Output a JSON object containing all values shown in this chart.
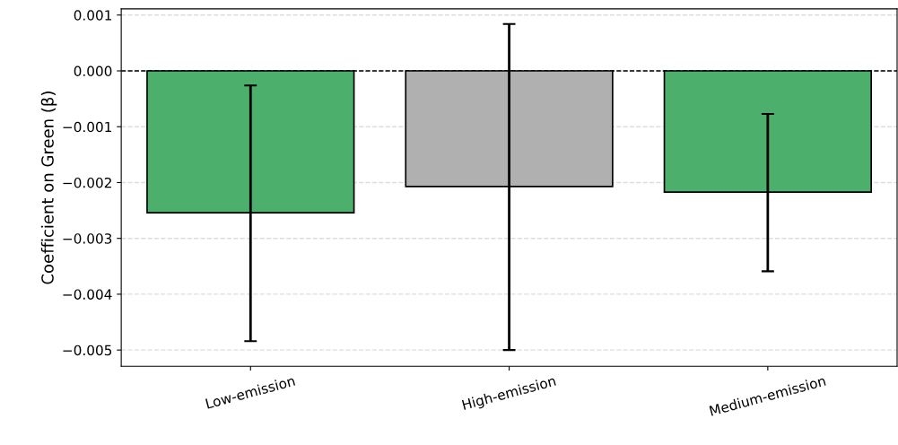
{
  "chart_data": {
    "type": "bar",
    "ylabel": "Coefficient on Green (β)",
    "categories": [
      "Low-emission",
      "High-emission",
      "Medium-emission"
    ],
    "values": [
      -0.00254,
      -0.00207,
      -0.00217
    ],
    "colors": [
      "#4caf6b",
      "#b0b0b0",
      "#4caf6b"
    ],
    "errors": [
      [
        -0.00484,
        -0.00026
      ],
      [
        -0.005,
        0.00084
      ],
      [
        -0.00359,
        -0.00077
      ]
    ],
    "ylim": [
      -0.00529,
      0.00111
    ],
    "yticks": [
      {
        "value": -0.005,
        "label": "−0.005"
      },
      {
        "value": -0.004,
        "label": "−0.004"
      },
      {
        "value": -0.003,
        "label": "−0.003"
      },
      {
        "value": -0.002,
        "label": "−0.002"
      },
      {
        "value": -0.001,
        "label": "−0.001"
      },
      {
        "value": 0.0,
        "label": "0.000"
      },
      {
        "value": 0.001,
        "label": "0.001"
      }
    ],
    "ref_lines": [
      {
        "axis": "y",
        "value": 0.0,
        "color": "#000000",
        "line_style": "dashed"
      }
    ],
    "grid": "y"
  }
}
